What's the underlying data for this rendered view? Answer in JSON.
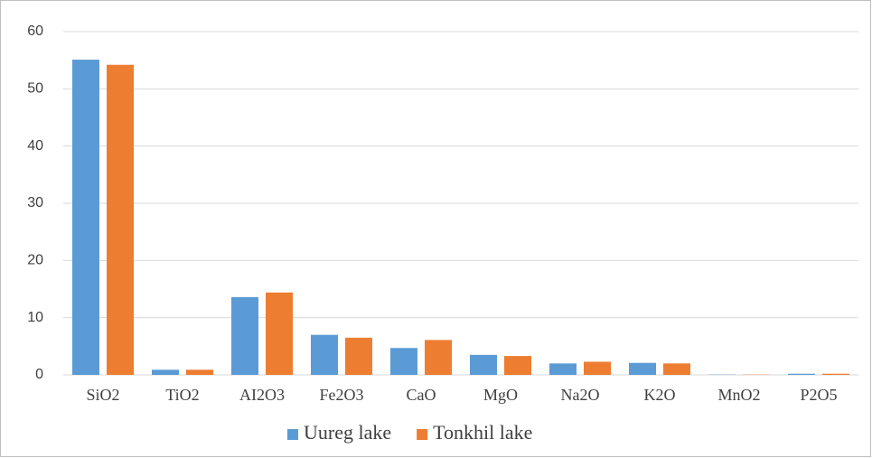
{
  "chart_data": {
    "type": "bar",
    "categories": [
      "SiO2",
      "TiO2",
      "AI2O3",
      "Fe2O3",
      "CaO",
      "MgO",
      "Na2O",
      "K2O",
      "MnO2",
      "P2O5"
    ],
    "series": [
      {
        "name": "Uureg lake",
        "color": "#5b9bd5",
        "values": [
          55.1,
          0.9,
          13.6,
          7.0,
          4.7,
          3.5,
          2.0,
          2.1,
          0.05,
          0.2
        ]
      },
      {
        "name": "Tonkhil lake",
        "color": "#ed7d31",
        "values": [
          54.2,
          0.9,
          14.4,
          6.5,
          6.1,
          3.3,
          2.3,
          2.0,
          0.05,
          0.2
        ]
      }
    ],
    "ylim": [
      0,
      60
    ],
    "yticks": [
      0,
      10,
      20,
      30,
      40,
      50,
      60
    ],
    "grid": true,
    "legend": "bottom"
  }
}
